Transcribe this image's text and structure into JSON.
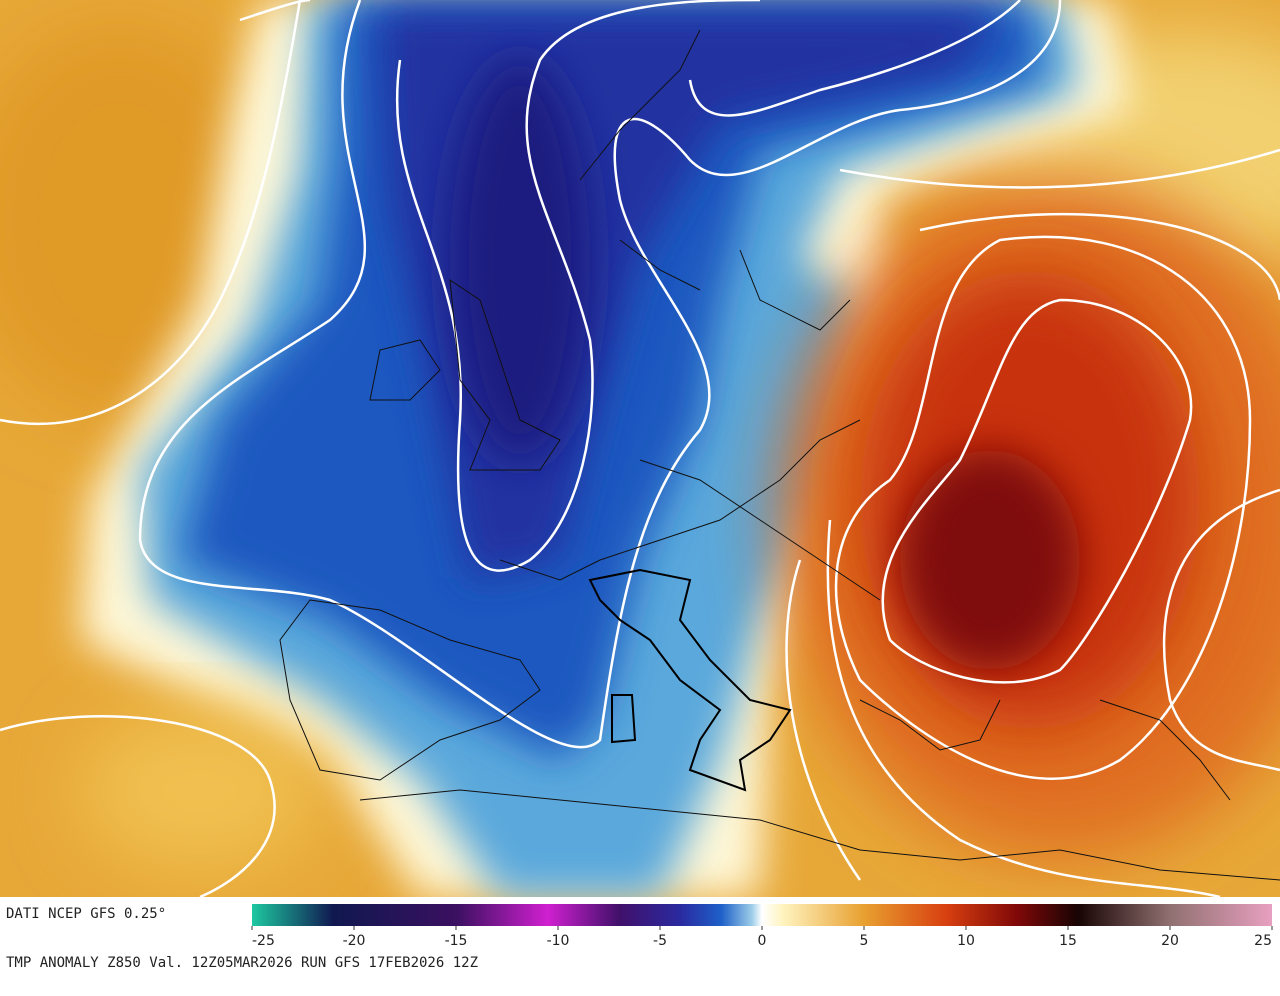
{
  "header": {
    "source": "DATI NCEP GFS 0.25°",
    "description": "TMP ANOMALY Z850 Val. 12Z05MAR2026 RUN GFS 17FEB2026 12Z"
  },
  "colorbar": {
    "lim": [
      -25,
      25
    ],
    "ticks": [
      -25,
      -20,
      -15,
      -10,
      -5,
      0,
      5,
      10,
      15,
      20,
      25
    ]
  }
}
